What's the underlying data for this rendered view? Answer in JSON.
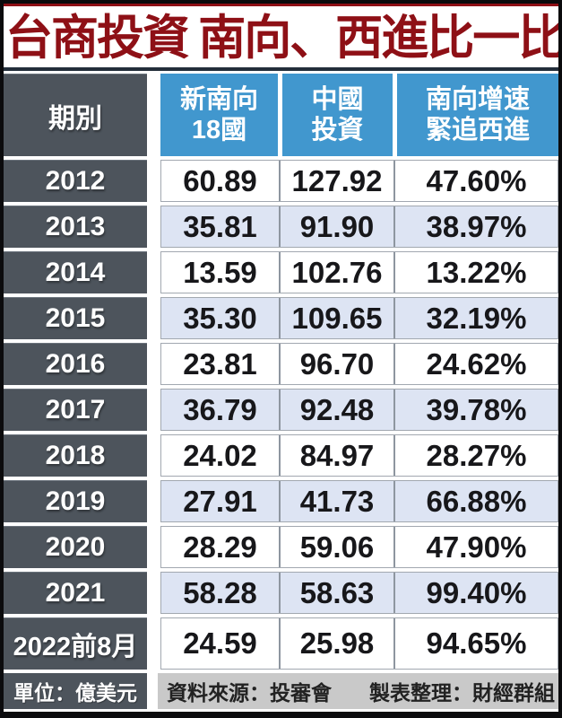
{
  "title": "台商投資 南向、西進比一比",
  "chart_data": {
    "type": "table",
    "title": "台商投資 南向、西進比一比",
    "columns": [
      "期別",
      "新南向18國",
      "中國投資",
      "南向增速緊追西進"
    ],
    "column_display_lines": [
      [
        "期別",
        ""
      ],
      [
        "新南向",
        "18國"
      ],
      [
        "中國",
        "投資"
      ],
      [
        "南向增速",
        "緊追西進"
      ]
    ],
    "unit": "億美元",
    "rows": [
      {
        "period": "2012",
        "new_southbound_18": "60.89",
        "china_investment": "127.92",
        "southbound_growth_vs_west": "47.60%"
      },
      {
        "period": "2013",
        "new_southbound_18": "35.81",
        "china_investment": "91.90",
        "southbound_growth_vs_west": "38.97%"
      },
      {
        "period": "2014",
        "new_southbound_18": "13.59",
        "china_investment": "102.76",
        "southbound_growth_vs_west": "13.22%"
      },
      {
        "period": "2015",
        "new_southbound_18": "35.30",
        "china_investment": "109.65",
        "southbound_growth_vs_west": "32.19%"
      },
      {
        "period": "2016",
        "new_southbound_18": "23.81",
        "china_investment": "96.70",
        "southbound_growth_vs_west": "24.62%"
      },
      {
        "period": "2017",
        "new_southbound_18": "36.79",
        "china_investment": "92.48",
        "southbound_growth_vs_west": "39.78%"
      },
      {
        "period": "2018",
        "new_southbound_18": "24.02",
        "china_investment": "84.97",
        "southbound_growth_vs_west": "28.27%"
      },
      {
        "period": "2019",
        "new_southbound_18": "27.91",
        "china_investment": "41.73",
        "southbound_growth_vs_west": "66.88%"
      },
      {
        "period": "2020",
        "new_southbound_18": "28.29",
        "china_investment": "59.06",
        "southbound_growth_vs_west": "47.90%"
      },
      {
        "period": "2021",
        "new_southbound_18": "58.28",
        "china_investment": "58.63",
        "southbound_growth_vs_west": "99.40%"
      },
      {
        "period": "2022前8月",
        "new_southbound_18": "24.59",
        "china_investment": "25.98",
        "southbound_growth_vs_west": "94.65%"
      }
    ]
  },
  "footer": {
    "unit_label": "單位：億美元",
    "source": "資料來源：投審會",
    "credit": "製表整理：財經群組"
  },
  "colors": {
    "title_red": "#8e1016",
    "header_blue": "#4197ce",
    "slate_gray": "#4d545c",
    "alt_row_blue": "#dde4f3",
    "footer_gray": "#c9c9c9",
    "rule_dark": "#232e3a"
  }
}
